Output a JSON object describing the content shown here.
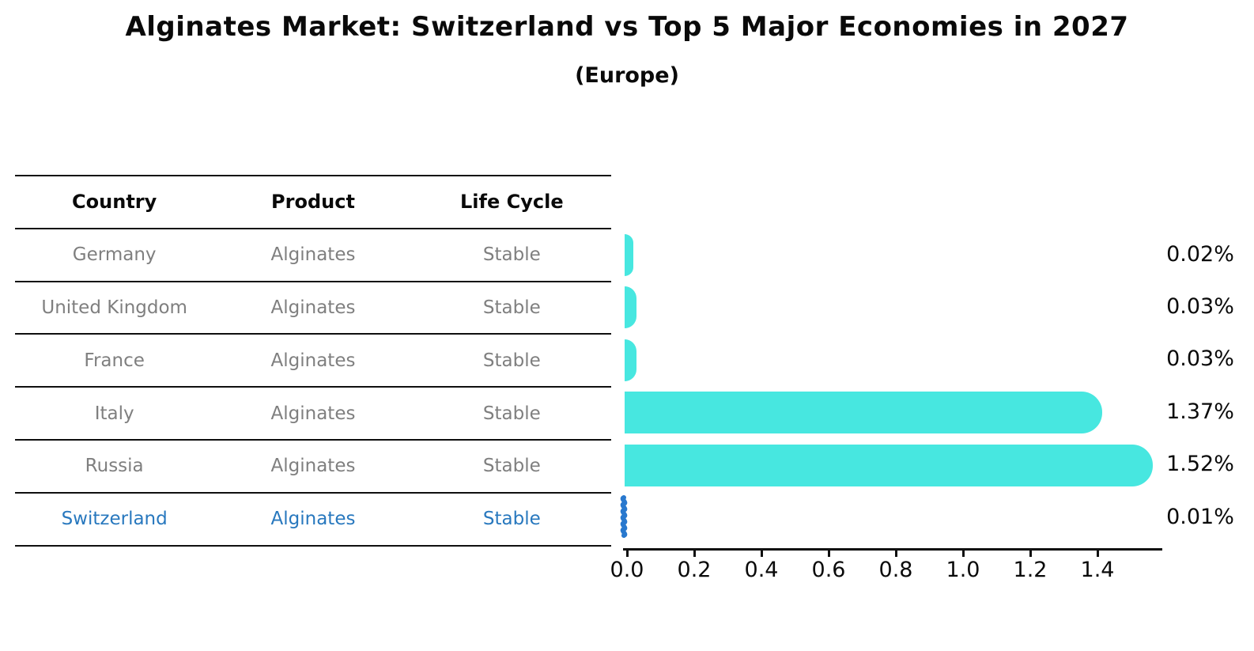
{
  "title": "Alginates Market: Switzerland vs Top 5 Major Economies in 2027",
  "subtitle": "(Europe)",
  "table": {
    "headers": [
      "Country",
      "Product",
      "Life Cycle"
    ],
    "rows": [
      {
        "country": "Germany",
        "product": "Alginates",
        "life_cycle": "Stable",
        "highlight": false
      },
      {
        "country": "United Kingdom",
        "product": "Alginates",
        "life_cycle": "Stable",
        "highlight": false
      },
      {
        "country": "France",
        "product": "Alginates",
        "life_cycle": "Stable",
        "highlight": false
      },
      {
        "country": "Italy",
        "product": "Alginates",
        "life_cycle": "Stable",
        "highlight": false
      },
      {
        "country": "Russia",
        "product": "Alginates",
        "life_cycle": "Stable",
        "highlight": false
      },
      {
        "country": "Switzerland",
        "product": "Alginates",
        "life_cycle": "Stable",
        "highlight": true
      }
    ]
  },
  "chart_data": {
    "type": "bar",
    "orientation": "horizontal",
    "title": "Alginates Market: Switzerland vs Top 5 Major Economies in 2027",
    "subtitle": "(Europe)",
    "categories": [
      "Germany",
      "United Kingdom",
      "France",
      "Italy",
      "Russia",
      "Switzerland"
    ],
    "values": [
      0.02,
      0.03,
      0.03,
      1.37,
      1.52,
      0.01
    ],
    "value_labels": [
      "0.02%",
      "0.03%",
      "0.03%",
      "1.37%",
      "1.52%",
      "0.01%"
    ],
    "xtick_labels": [
      "0.0",
      "0.2",
      "0.4",
      "0.6",
      "0.8",
      "1.0",
      "1.2",
      "1.4"
    ],
    "xlim": [
      0,
      1.6
    ],
    "grid": false,
    "legend": "none",
    "highlight_index": 5,
    "colors": {
      "bar": "#47e7e0",
      "highlight_bar": "#2878ce",
      "highlight_text": "#2878be",
      "table_text": "#7f7f7f",
      "axis": "#0f0f0f"
    }
  }
}
